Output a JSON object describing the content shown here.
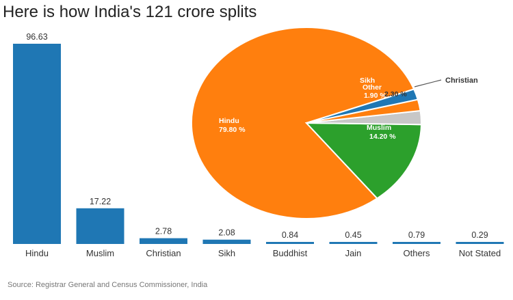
{
  "title": "Here is how India's 121 crore splits",
  "source": "Source: Registrar General and Census Commissioner, India",
  "chart_data": [
    {
      "type": "bar",
      "title": "Here is how India's 121 crore splits",
      "categories": [
        "Hindu",
        "Muslim",
        "Christian",
        "Sikh",
        "Buddhist",
        "Jain",
        "Others",
        "Not Stated"
      ],
      "values": [
        96.63,
        17.22,
        2.78,
        2.08,
        0.84,
        0.45,
        0.79,
        0.29
      ],
      "value_labels": [
        "96.63",
        "17.22",
        "2.78",
        "2.08",
        "0.84",
        "0.45",
        "0.79",
        "0.29"
      ],
      "ylim": [
        0,
        96.63
      ],
      "grid": false,
      "color": "#1f77b4"
    },
    {
      "type": "pie",
      "slices": [
        {
          "name": "Hindu",
          "value": 79.8,
          "label": "79.80 %",
          "color": "#ff7f0e"
        },
        {
          "name": "Muslim",
          "value": 14.2,
          "label": "14.20 %",
          "color": "#2ca02c"
        },
        {
          "name": "Christian",
          "value": 2.3,
          "label": "2.30 %",
          "color": "#c7c7c7"
        },
        {
          "name": "Other",
          "value": 1.9,
          "label": "1.90 %",
          "color": "#ff7f0e"
        },
        {
          "name": "Sikh",
          "value": 1.8,
          "label": "",
          "color": "#1f77b4"
        }
      ],
      "callout": "Christian"
    }
  ]
}
